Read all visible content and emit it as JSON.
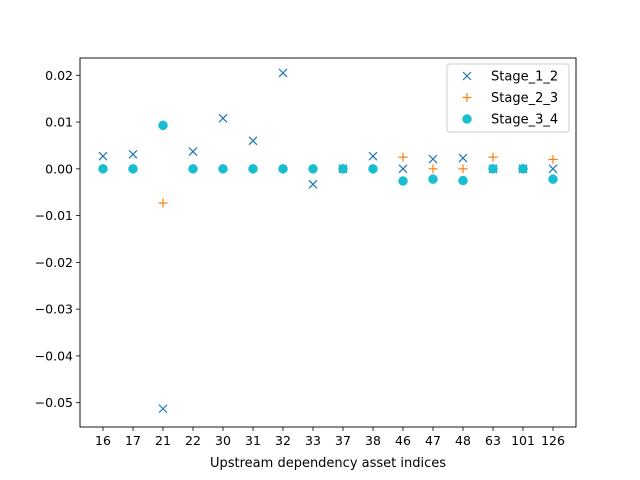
{
  "chart_data": {
    "type": "scatter",
    "title": "",
    "xlabel": "Upstream dependency asset indices",
    "ylabel": "",
    "categories": [
      "16",
      "17",
      "21",
      "22",
      "30",
      "31",
      "32",
      "33",
      "37",
      "38",
      "46",
      "47",
      "48",
      "63",
      "101",
      "126"
    ],
    "ylim": [
      -0.0552,
      0.0237
    ],
    "yticks": [
      0.02,
      0.01,
      0.0,
      -0.01,
      -0.02,
      -0.03,
      -0.04,
      -0.05
    ],
    "ytick_labels": [
      "0.02",
      "0.01",
      "0.00",
      "−0.01",
      "−0.02",
      "−0.03",
      "−0.04",
      "−0.05"
    ],
    "grid": false,
    "legend_position": "top-right",
    "series": [
      {
        "name": "Stage_1_2",
        "marker": "x",
        "color": "#1f77b4",
        "values": [
          0.0027,
          0.0031,
          -0.0513,
          0.0037,
          0.0108,
          0.006,
          0.0205,
          -0.0033,
          0.0,
          0.0027,
          0.0,
          0.0021,
          0.0023,
          0.0,
          0.0,
          0.0
        ]
      },
      {
        "name": "Stage_2_3",
        "marker": "+",
        "color": "#ff7f0e",
        "values": [
          0.0,
          0.0,
          -0.0073,
          0.0,
          0.0,
          0.0,
          0.0,
          0.0,
          0.0,
          0.0,
          0.0025,
          0.0,
          0.0,
          0.0025,
          0.0,
          0.002
        ]
      },
      {
        "name": "Stage_3_4",
        "marker": "o",
        "color": "#17becf",
        "values": [
          0.0,
          0.0,
          0.0093,
          0.0,
          0.0,
          0.0,
          0.0,
          0.0,
          0.0,
          0.0,
          -0.0026,
          -0.0022,
          -0.0025,
          0.0,
          0.0,
          -0.0022
        ]
      }
    ]
  }
}
